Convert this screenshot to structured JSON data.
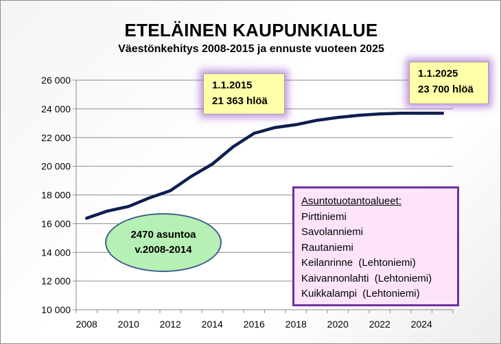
{
  "chart_data": {
    "type": "line",
    "title": "ETELÄINEN KAUPUNKIALUE",
    "subtitle": "Väestönkehitys 2008-2015 ja ennuste vuoteen 2025",
    "xlabel": "",
    "ylabel": "",
    "x_ticks": [
      "2008",
      "2010",
      "2012",
      "2014",
      "2016",
      "2018",
      "2020",
      "2022",
      "2024"
    ],
    "y_ticks": [
      "10 000",
      "12 000",
      "14 000",
      "16 000",
      "18 000",
      "20 000",
      "22 000",
      "24 000",
      "26 000"
    ],
    "xlim": [
      2007.5,
      2025.5
    ],
    "ylim": [
      10000,
      26000
    ],
    "grid": "horizontal",
    "legend": "none",
    "series": [
      {
        "color": "#0d1f4f",
        "x": [
          2008,
          2009,
          2010,
          2011,
          2012,
          2013,
          2014,
          2015,
          2016,
          2017,
          2018,
          2019,
          2020,
          2021,
          2022,
          2023,
          2024,
          2025
        ],
        "values": [
          16380,
          16880,
          17200,
          17800,
          18300,
          19300,
          20150,
          21363,
          22300,
          22700,
          22900,
          23200,
          23400,
          23550,
          23650,
          23700,
          23700,
          23700
        ]
      }
    ],
    "annotations": {
      "callout_2015": {
        "lines": [
          "1.1.2015",
          "21 363 hlöä"
        ]
      },
      "callout_2025": {
        "lines": [
          "1.1.2025",
          "23 700 hlöä"
        ]
      },
      "housing_note": {
        "lines": [
          "2470 asuntoa",
          "v.2008-2014"
        ]
      },
      "production_areas": {
        "heading": "Asuntotuotantoalueet:",
        "items": [
          "Pirttiniemi",
          "Savolanniemi",
          "Rautaniemi",
          "Keilanrinne  (Lehtoniemi)",
          "Kaivannonlahti  (Lehtoniemi)",
          "Kuikkalampi  (Lehtoniemi)"
        ]
      }
    },
    "colors": {
      "line": "#0d1f4f",
      "callout_fill": "#ffffaa",
      "callout_glow": "#9646c8",
      "ellipse_fill": "#b7f0b4",
      "box_fill": "#fde4fb",
      "box_border": "#7030a0"
    }
  }
}
